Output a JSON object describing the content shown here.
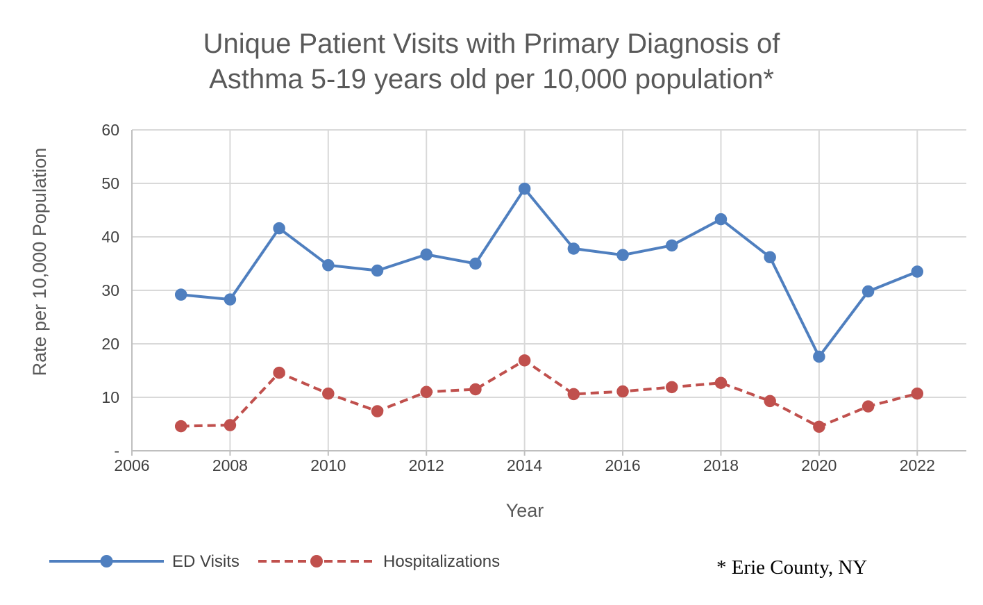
{
  "chart_data": {
    "type": "line",
    "title_lines": [
      "Unique Patient Visits with Primary Diagnosis of",
      "Asthma 5-19 years old per 10,000 population*"
    ],
    "xlabel": "Year",
    "ylabel": "Rate per  10,000 Population",
    "xlim": [
      2006,
      2023
    ],
    "ylim": [
      0,
      60
    ],
    "x_ticks": [
      "2006",
      "2008",
      "2010",
      "2012",
      "2014",
      "2016",
      "2018",
      "2020",
      "2022"
    ],
    "y_ticks": [
      "-",
      "10",
      "20",
      "30",
      "40",
      "50",
      "60"
    ],
    "grid": true,
    "legend_position": "bottom-left",
    "x": [
      2007,
      2008,
      2009,
      2010,
      2011,
      2012,
      2013,
      2014,
      2015,
      2016,
      2017,
      2018,
      2019,
      2020,
      2021,
      2022
    ],
    "series": [
      {
        "name": "ED Visits",
        "color": "#4f7fbf",
        "line_style": "solid",
        "values": [
          29.2,
          28.3,
          41.6,
          34.7,
          33.7,
          36.7,
          35.0,
          49.0,
          37.8,
          36.6,
          38.4,
          43.3,
          36.2,
          17.6,
          29.8,
          33.5
        ]
      },
      {
        "name": "Hospitalizations",
        "color": "#c0504d",
        "line_style": "dashed",
        "values": [
          4.6,
          4.8,
          14.6,
          10.7,
          7.4,
          11.0,
          11.5,
          16.9,
          10.6,
          11.1,
          11.9,
          12.7,
          9.3,
          4.5,
          8.3,
          10.7
        ]
      }
    ],
    "footnote": "* Erie County, NY"
  }
}
